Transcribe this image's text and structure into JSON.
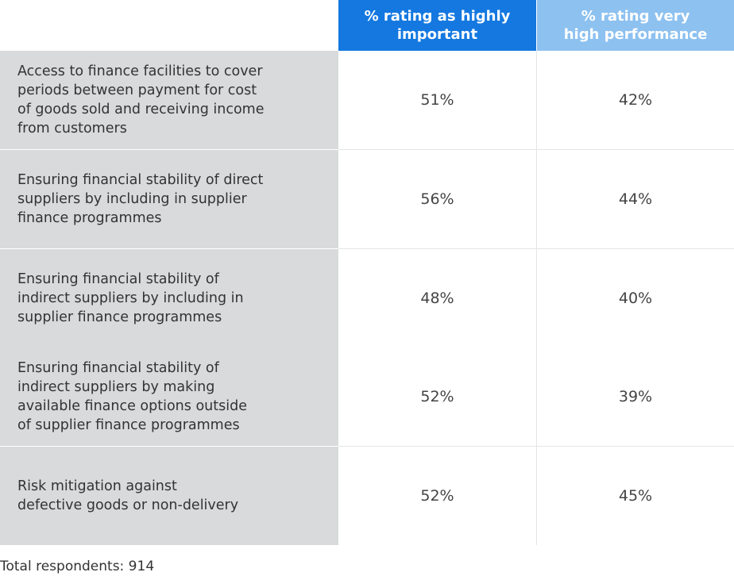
{
  "chart_data": {
    "type": "table",
    "columns": [
      "% rating as highly\nimportant",
      "% rating very\nhigh performance"
    ],
    "rows": [
      {
        "label": "Access to finance facilities to cover\nperiods between payment for cost\nof goods sold and receiving income\nfrom customers",
        "values": [
          "51%",
          "42%"
        ]
      },
      {
        "label": "Ensuring financial stability of direct\nsuppliers by including in supplier\nfinance programmes",
        "values": [
          "56%",
          "44%"
        ]
      },
      {
        "label": "Ensuring financial stability of\nindirect suppliers by including in\nsupplier finance programmes",
        "values": [
          "48%",
          "40%"
        ]
      },
      {
        "label": "Ensuring financial stability of\nindirect suppliers by making\navailable finance options outside\nof supplier finance programmes",
        "values": [
          "52%",
          "39%"
        ]
      },
      {
        "label": "Risk mitigation against\ndefective goods or non-delivery",
        "values": [
          "52%",
          "45%"
        ]
      }
    ],
    "footnote": "Total respondents: 914",
    "colors": {
      "header_col1": "#1478e0",
      "header_col2": "#8dc1f0",
      "label_bg": "#d9dadc"
    }
  }
}
